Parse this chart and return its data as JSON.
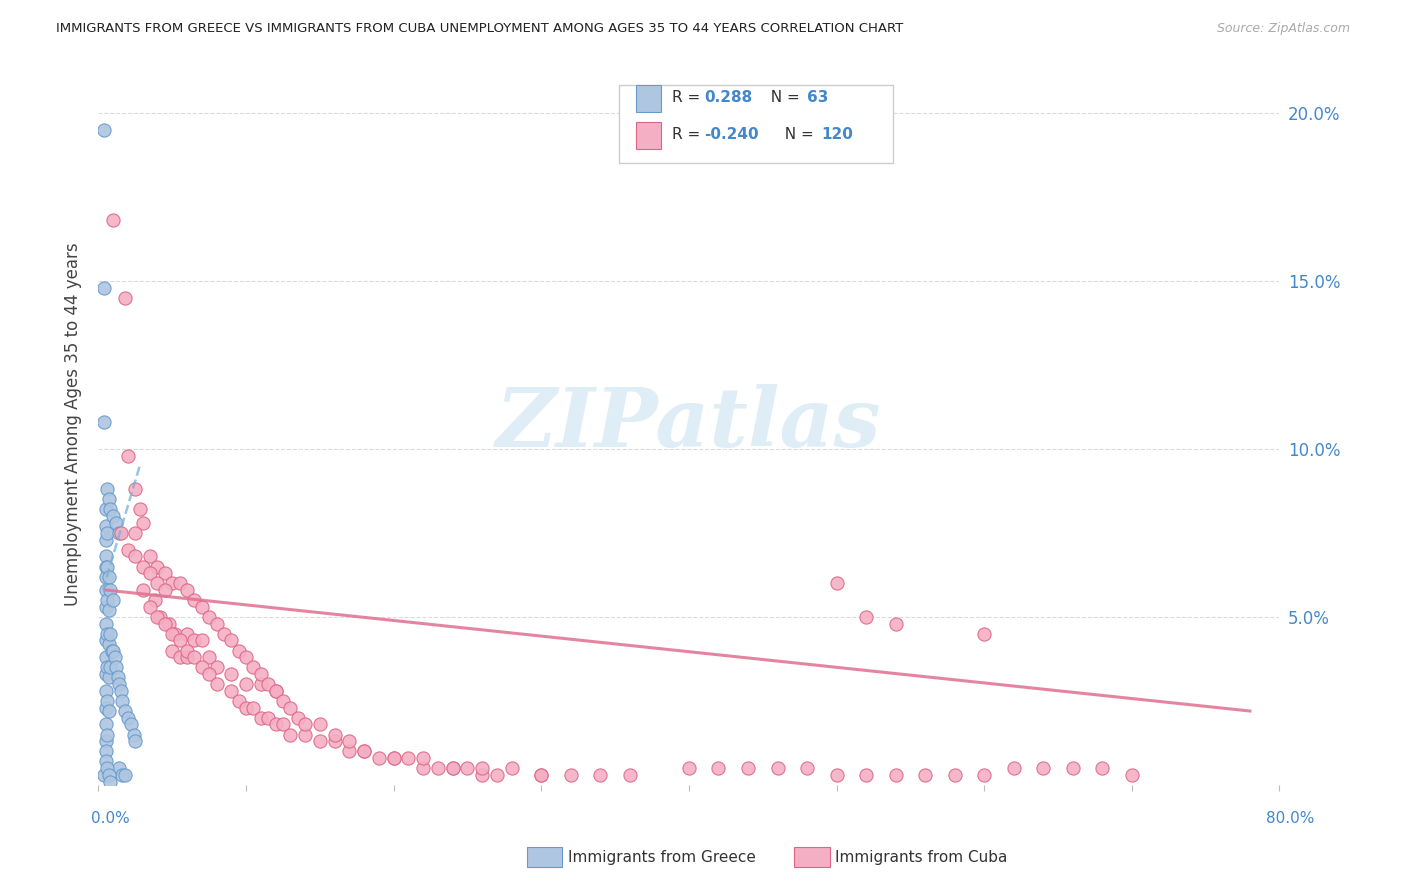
{
  "title": "IMMIGRANTS FROM GREECE VS IMMIGRANTS FROM CUBA UNEMPLOYMENT AMONG AGES 35 TO 44 YEARS CORRELATION CHART",
  "source": "Source: ZipAtlas.com",
  "ylabel": "Unemployment Among Ages 35 to 44 years",
  "xlim": [
    0.0,
    0.8
  ],
  "ylim": [
    0.0,
    0.215
  ],
  "yticks": [
    0.0,
    0.05,
    0.1,
    0.15,
    0.2
  ],
  "ytick_labels": [
    "",
    "5.0%",
    "10.0%",
    "15.0%",
    "20.0%"
  ],
  "xticks": [
    0.0,
    0.1,
    0.2,
    0.3,
    0.4,
    0.5,
    0.6,
    0.7,
    0.8
  ],
  "greece_color": "#aec6e0",
  "cuba_color": "#f4afc4",
  "greece_edge": "#6699cc",
  "cuba_edge": "#dd6688",
  "trend_greece_color": "#7ab0d4",
  "trend_cuba_color": "#e07090",
  "legend_R_greece": "0.288",
  "legend_N_greece": "63",
  "legend_R_cuba": "-0.240",
  "legend_N_cuba": "120",
  "watermark_text": "ZIPatlas",
  "background_color": "#ffffff",
  "grid_color": "#cccccc",
  "label_color": "#4488cc",
  "title_color": "#222222",
  "greece_scatter_x": [
    0.004,
    0.004,
    0.004,
    0.004,
    0.005,
    0.005,
    0.005,
    0.005,
    0.005,
    0.005,
    0.005,
    0.005,
    0.005,
    0.005,
    0.005,
    0.005,
    0.005,
    0.005,
    0.005,
    0.005,
    0.006,
    0.006,
    0.006,
    0.006,
    0.006,
    0.006,
    0.006,
    0.007,
    0.007,
    0.007,
    0.007,
    0.007,
    0.008,
    0.008,
    0.008,
    0.009,
    0.01,
    0.01,
    0.011,
    0.012,
    0.013,
    0.014,
    0.015,
    0.016,
    0.018,
    0.02,
    0.022,
    0.024,
    0.025,
    0.014,
    0.016,
    0.018,
    0.006,
    0.007,
    0.008,
    0.01,
    0.012,
    0.014,
    0.005,
    0.005,
    0.006,
    0.007,
    0.008
  ],
  "greece_scatter_y": [
    0.195,
    0.148,
    0.108,
    0.003,
    0.082,
    0.077,
    0.073,
    0.068,
    0.065,
    0.062,
    0.058,
    0.053,
    0.048,
    0.043,
    0.038,
    0.033,
    0.028,
    0.023,
    0.018,
    0.013,
    0.075,
    0.065,
    0.055,
    0.045,
    0.035,
    0.025,
    0.015,
    0.062,
    0.052,
    0.042,
    0.032,
    0.022,
    0.058,
    0.045,
    0.035,
    0.04,
    0.055,
    0.04,
    0.038,
    0.035,
    0.032,
    0.03,
    0.028,
    0.025,
    0.022,
    0.02,
    0.018,
    0.015,
    0.013,
    0.005,
    0.003,
    0.003,
    0.088,
    0.085,
    0.082,
    0.08,
    0.078,
    0.075,
    0.01,
    0.007,
    0.005,
    0.003,
    0.001
  ],
  "cuba_scatter_x": [
    0.01,
    0.018,
    0.02,
    0.025,
    0.028,
    0.03,
    0.025,
    0.035,
    0.04,
    0.045,
    0.05,
    0.03,
    0.038,
    0.042,
    0.048,
    0.052,
    0.06,
    0.065,
    0.07,
    0.05,
    0.055,
    0.06,
    0.075,
    0.08,
    0.09,
    0.1,
    0.11,
    0.12,
    0.015,
    0.02,
    0.025,
    0.03,
    0.035,
    0.04,
    0.045,
    0.035,
    0.04,
    0.045,
    0.05,
    0.055,
    0.06,
    0.065,
    0.07,
    0.075,
    0.08,
    0.09,
    0.095,
    0.1,
    0.105,
    0.11,
    0.115,
    0.12,
    0.125,
    0.13,
    0.14,
    0.15,
    0.16,
    0.17,
    0.18,
    0.19,
    0.2,
    0.21,
    0.22,
    0.23,
    0.24,
    0.25,
    0.26,
    0.27,
    0.3,
    0.32,
    0.34,
    0.36,
    0.055,
    0.06,
    0.065,
    0.07,
    0.075,
    0.08,
    0.085,
    0.09,
    0.095,
    0.1,
    0.105,
    0.11,
    0.115,
    0.12,
    0.125,
    0.13,
    0.135,
    0.14,
    0.15,
    0.16,
    0.17,
    0.18,
    0.2,
    0.22,
    0.24,
    0.26,
    0.28,
    0.3,
    0.4,
    0.42,
    0.44,
    0.46,
    0.48,
    0.5,
    0.52,
    0.54,
    0.56,
    0.58,
    0.6,
    0.62,
    0.64,
    0.66,
    0.68,
    0.7,
    0.5,
    0.52,
    0.54,
    0.6
  ],
  "cuba_scatter_y": [
    0.168,
    0.145,
    0.098,
    0.088,
    0.082,
    0.078,
    0.075,
    0.068,
    0.065,
    0.063,
    0.06,
    0.058,
    0.055,
    0.05,
    0.048,
    0.045,
    0.045,
    0.043,
    0.043,
    0.04,
    0.038,
    0.038,
    0.038,
    0.035,
    0.033,
    0.03,
    0.03,
    0.028,
    0.075,
    0.07,
    0.068,
    0.065,
    0.063,
    0.06,
    0.058,
    0.053,
    0.05,
    0.048,
    0.045,
    0.043,
    0.04,
    0.038,
    0.035,
    0.033,
    0.03,
    0.028,
    0.025,
    0.023,
    0.023,
    0.02,
    0.02,
    0.018,
    0.018,
    0.015,
    0.015,
    0.013,
    0.013,
    0.01,
    0.01,
    0.008,
    0.008,
    0.008,
    0.005,
    0.005,
    0.005,
    0.005,
    0.003,
    0.003,
    0.003,
    0.003,
    0.003,
    0.003,
    0.06,
    0.058,
    0.055,
    0.053,
    0.05,
    0.048,
    0.045,
    0.043,
    0.04,
    0.038,
    0.035,
    0.033,
    0.03,
    0.028,
    0.025,
    0.023,
    0.02,
    0.018,
    0.018,
    0.015,
    0.013,
    0.01,
    0.008,
    0.008,
    0.005,
    0.005,
    0.005,
    0.003,
    0.005,
    0.005,
    0.005,
    0.005,
    0.005,
    0.003,
    0.003,
    0.003,
    0.003,
    0.003,
    0.003,
    0.005,
    0.005,
    0.005,
    0.005,
    0.003,
    0.06,
    0.05,
    0.048,
    0.045
  ],
  "greece_trend_x": [
    0.003,
    0.028
  ],
  "greece_trend_y": [
    0.058,
    0.095
  ],
  "cuba_trend_x": [
    0.005,
    0.78
  ],
  "cuba_trend_y": [
    0.058,
    0.022
  ]
}
